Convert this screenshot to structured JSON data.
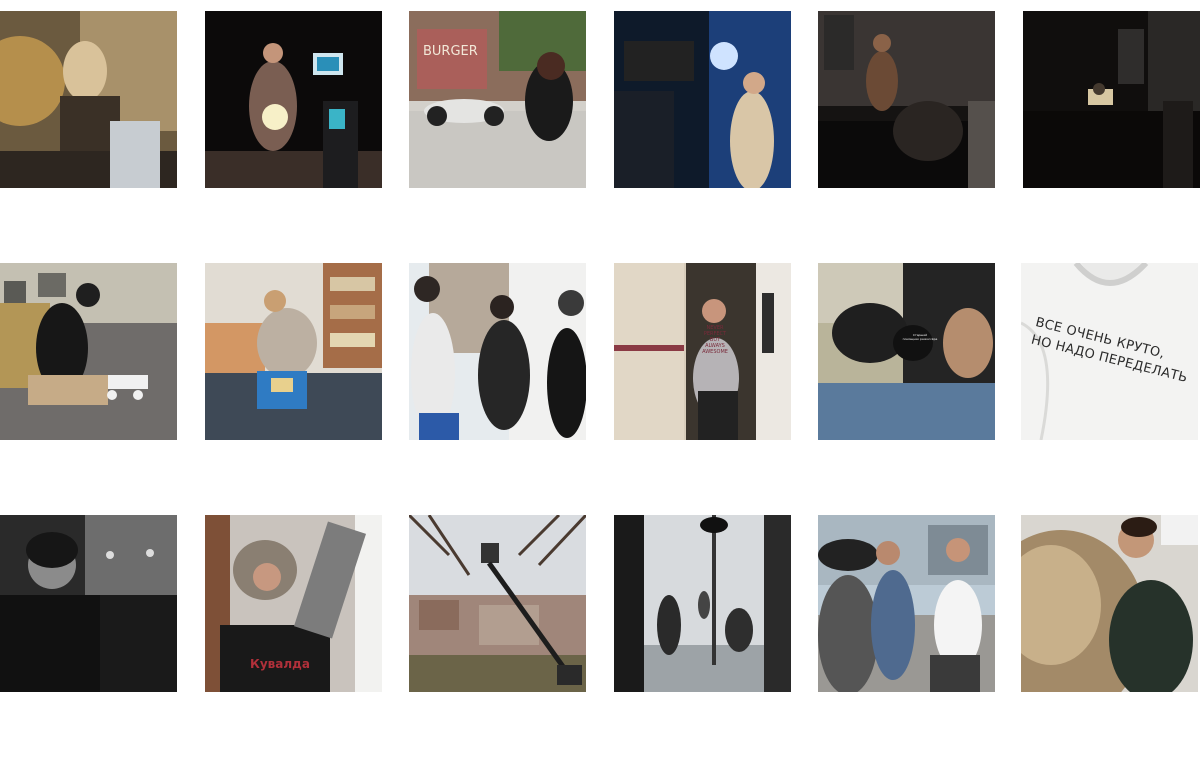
{
  "gallery": {
    "photos": [
      {
        "id": "photo-1",
        "alt": "woman at a table with food"
      },
      {
        "id": "photo-2",
        "alt": "woman holding glowing orb on stage"
      },
      {
        "id": "photo-3",
        "alt": "camerawoman kneeling by motorcycle"
      },
      {
        "id": "photo-4",
        "alt": "camera rig filming dancer in blue light"
      },
      {
        "id": "photo-5",
        "alt": "dark room with people"
      },
      {
        "id": "photo-6",
        "alt": "person at laptop in dark room"
      },
      {
        "id": "photo-7",
        "alt": "man with backpack and drone"
      },
      {
        "id": "photo-8",
        "alt": "woman opening box in office"
      },
      {
        "id": "photo-9",
        "alt": "three men talking"
      },
      {
        "id": "photo-10",
        "alt": "woman standing in trailer doorway"
      },
      {
        "id": "photo-11",
        "alt": "crew looking at monitor"
      },
      {
        "id": "photo-12",
        "alt": "white hoodie with printed text"
      },
      {
        "id": "photo-13",
        "alt": "bearded man in cinema"
      },
      {
        "id": "photo-14",
        "alt": "boom operator in fur hat"
      },
      {
        "id": "photo-15",
        "alt": "crane lift among trees"
      },
      {
        "id": "photo-16",
        "alt": "film studio with white backdrop"
      },
      {
        "id": "photo-17",
        "alt": "crew outdoors with camera"
      },
      {
        "id": "photo-18",
        "alt": "man next to golden reflector"
      }
    ],
    "hoodie_caption": "ВСЕ ОЧЕНЬ КРУТО,\nНО НАДО ПЕРЕДЕЛАТЬ",
    "tshirt_text": "NEVER\nPERFECT\nBUT\nALWAYS\nAWESOME",
    "cap_text": "Старший\nпомощник режиссёра",
    "burger_sign": "BURGER",
    "band_tshirt": "Кувалда"
  }
}
